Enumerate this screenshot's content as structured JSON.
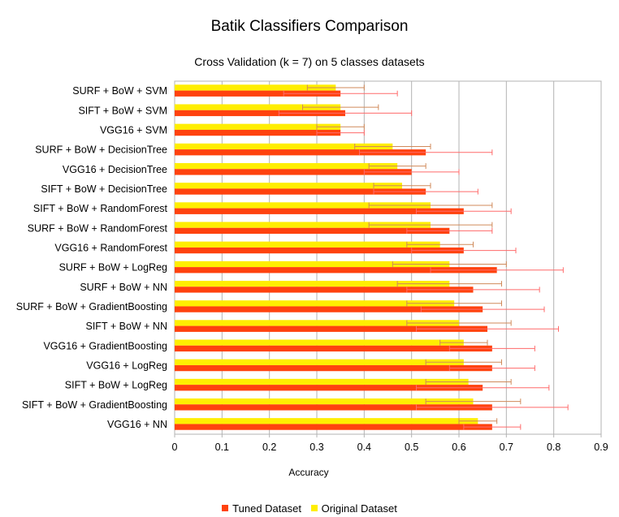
{
  "chart_data": {
    "type": "bar",
    "orientation": "horizontal",
    "title": "Batik Classifiers Comparison",
    "subtitle": "Cross Validation (k = 7) on 5 classes datasets",
    "xlabel": "Accuracy",
    "xlim": [
      0,
      0.9
    ],
    "xticks": [
      "0",
      "0.1",
      "0.2",
      "0.3",
      "0.4",
      "0.5",
      "0.6",
      "0.7",
      "0.8",
      "0.9"
    ],
    "grid": true,
    "legend_position": "bottom",
    "categories": [
      "SURF + BoW + SVM",
      "SIFT + BoW + SVM",
      "VGG16 + SVM",
      "SURF + BoW + DecisionTree",
      "VGG16 + DecisionTree",
      "SIFT + BoW + DecisionTree",
      "SIFT + BoW + RandomForest",
      "SURF + BoW + RandomForest",
      "VGG16 + RandomForest",
      "SURF + BoW + LogReg",
      "SURF + BoW + NN",
      "SURF + BoW + GradientBoosting",
      "SIFT + BoW + NN",
      "VGG16 + GradientBoosting",
      "VGG16 + LogReg",
      "SIFT + BoW + LogReg",
      "SIFT + BoW + GradientBoosting",
      "VGG16 + NN"
    ],
    "series": [
      {
        "name": "Original Dataset",
        "color": "#ffee00",
        "values": [
          0.34,
          0.35,
          0.35,
          0.46,
          0.47,
          0.48,
          0.54,
          0.54,
          0.56,
          0.58,
          0.58,
          0.59,
          0.6,
          0.61,
          0.61,
          0.62,
          0.63,
          0.64
        ],
        "error": [
          0.06,
          0.08,
          0.05,
          0.08,
          0.06,
          0.06,
          0.13,
          0.13,
          0.07,
          0.12,
          0.11,
          0.1,
          0.11,
          0.05,
          0.08,
          0.09,
          0.1,
          0.04
        ]
      },
      {
        "name": "Tuned Dataset",
        "color": "#ff420e",
        "values": [
          0.35,
          0.36,
          0.35,
          0.53,
          0.5,
          0.53,
          0.61,
          0.58,
          0.61,
          0.68,
          0.63,
          0.65,
          0.66,
          0.67,
          0.67,
          0.65,
          0.67,
          0.67
        ],
        "error": [
          0.12,
          0.14,
          0.05,
          0.14,
          0.1,
          0.11,
          0.1,
          0.09,
          0.11,
          0.14,
          0.14,
          0.13,
          0.15,
          0.09,
          0.09,
          0.14,
          0.16,
          0.06
        ]
      }
    ]
  }
}
